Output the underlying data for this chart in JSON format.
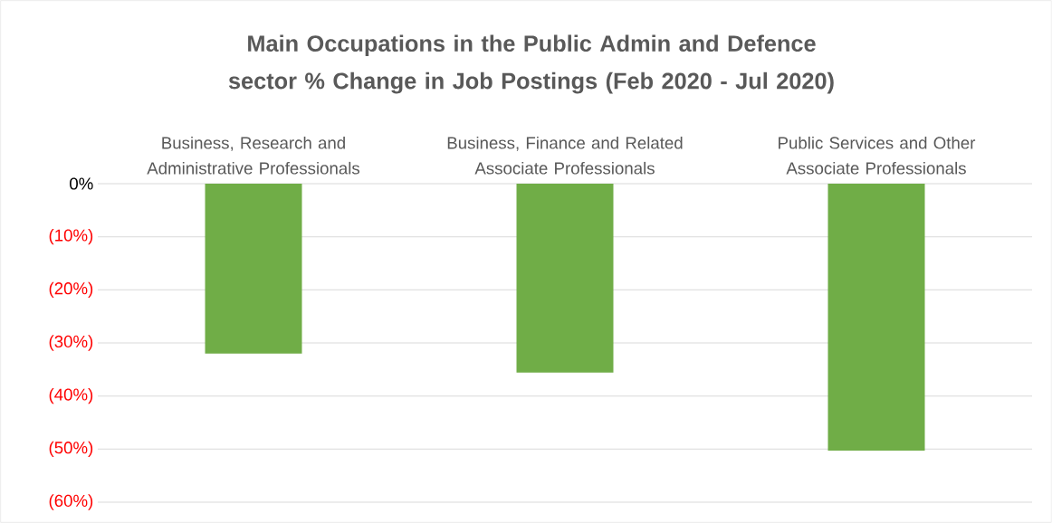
{
  "chart_data": {
    "type": "bar",
    "title": "Main Occupations in the Public Admin and Defence sector % Change in Job Postings (Feb 2020 - Jul 2020)",
    "categories": [
      "Business, Research and Administrative Professionals",
      "Business, Finance and Related Associate Professionals",
      "Public Services and Other Associate Professionals"
    ],
    "values": [
      -32,
      -35.6,
      -50.3
    ],
    "color": "#70ad47",
    "ylim": [
      -60,
      0
    ],
    "yticks": [
      {
        "value": 0,
        "label": "0%"
      },
      {
        "value": -10,
        "label": "(10%)"
      },
      {
        "value": -20,
        "label": "(20%)"
      },
      {
        "value": -30,
        "label": "(30%)"
      },
      {
        "value": -40,
        "label": "(40%)"
      },
      {
        "value": -50,
        "label": "(50%)"
      },
      {
        "value": -60,
        "label": "(60%)"
      }
    ],
    "grid": "y"
  }
}
